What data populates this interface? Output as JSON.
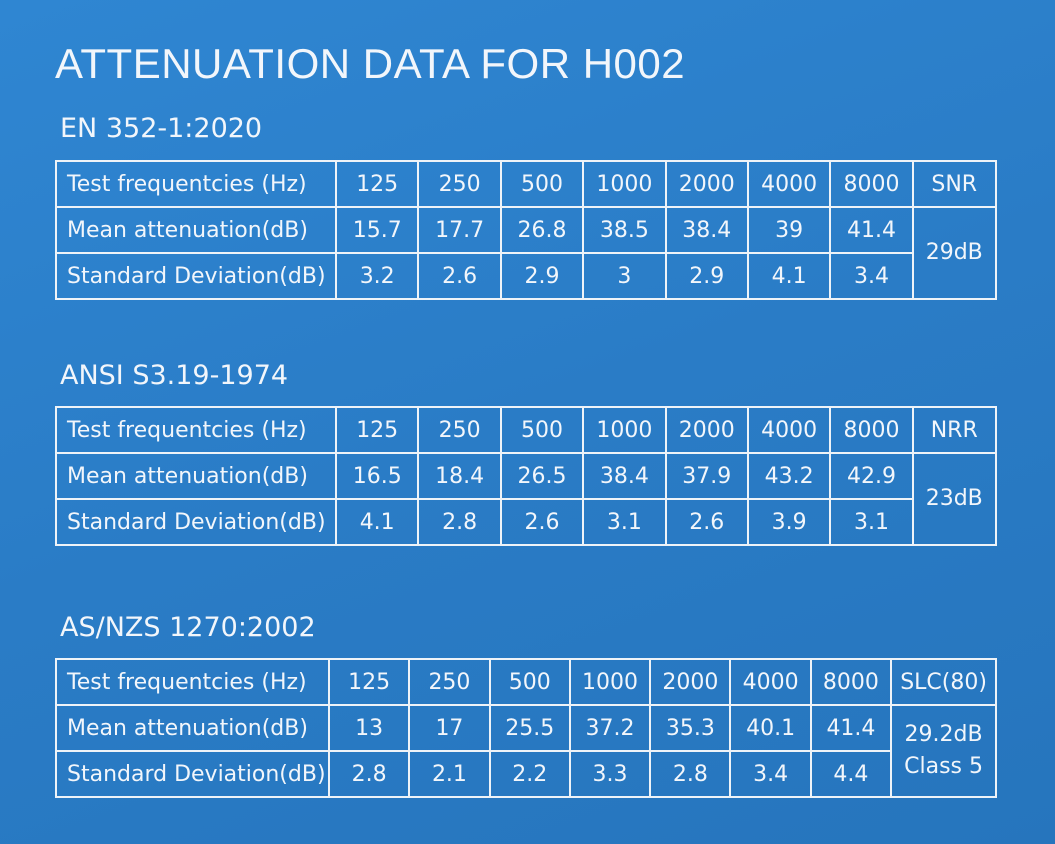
{
  "title": "ATTENUATION DATA FOR H002",
  "sections": [
    {
      "heading": "EN 352-1:2020",
      "header": {
        "label": "Test frequentcies (Hz)",
        "frequencies": [
          125,
          250,
          500,
          1000,
          2000,
          4000,
          8000
        ],
        "rating_label": "SNR"
      },
      "rows": [
        {
          "label": "Mean attenuation(dB)",
          "values": [
            15.7,
            17.7,
            26.8,
            38.5,
            38.4,
            39,
            41.4
          ]
        },
        {
          "label": "Standard Deviation(dB)",
          "values": [
            3.2,
            2.6,
            2.9,
            3,
            2.9,
            4.1,
            3.4
          ]
        }
      ],
      "rating": [
        "29dB"
      ]
    },
    {
      "heading": "ANSI S3.19-1974",
      "header": {
        "label": "Test frequentcies (Hz)",
        "frequencies": [
          125,
          250,
          500,
          1000,
          2000,
          4000,
          8000
        ],
        "rating_label": "NRR"
      },
      "rows": [
        {
          "label": "Mean attenuation(dB)",
          "values": [
            16.5,
            18.4,
            26.5,
            38.4,
            37.9,
            43.2,
            42.9
          ]
        },
        {
          "label": "Standard Deviation(dB)",
          "values": [
            4.1,
            2.8,
            2.6,
            3.1,
            2.6,
            3.9,
            3.1
          ]
        }
      ],
      "rating": [
        "23dB"
      ]
    },
    {
      "heading": "AS/NZS 1270:2002",
      "header": {
        "label": "Test frequentcies (Hz)",
        "frequencies": [
          125,
          250,
          500,
          1000,
          2000,
          4000,
          8000
        ],
        "rating_label": "SLC(80)"
      },
      "rows": [
        {
          "label": "Mean attenuation(dB)",
          "values": [
            13,
            17,
            25.5,
            37.2,
            35.3,
            40.1,
            41.4
          ]
        },
        {
          "label": "Standard Deviation(dB)",
          "values": [
            2.8,
            2.1,
            2.2,
            3.3,
            2.8,
            3.4,
            4.4
          ]
        }
      ],
      "rating": [
        "29.2dB",
        "Class 5"
      ]
    }
  ]
}
